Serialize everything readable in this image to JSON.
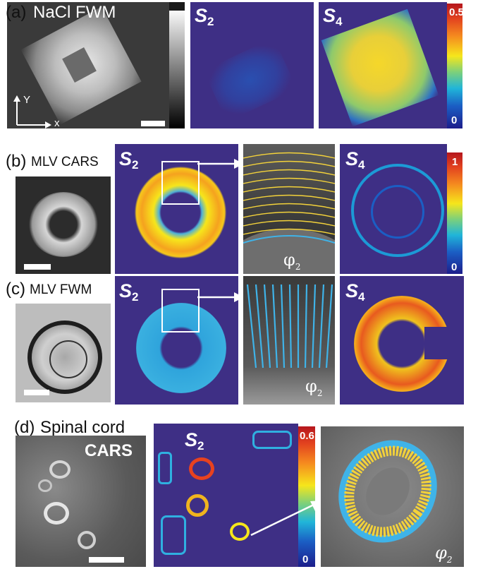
{
  "panel_labels": {
    "a": "(a)",
    "a_title": "NaCl FWM",
    "b": "(b)",
    "b_title": "MLV CARS",
    "c": "(c)",
    "c_title": "MLV FWM",
    "d": "(d)",
    "d_title": "Spinal cord"
  },
  "symbols": {
    "S": "S",
    "sub2": "2",
    "sub4": "4",
    "phi": "φ",
    "phi_sub": "2",
    "cars": "CARS"
  },
  "axes": {
    "x": "x",
    "y": "Y"
  },
  "colorbars": {
    "a_max": "0.5",
    "a_min": "0",
    "b_max": "1",
    "b_min": "0",
    "d_max": "0.6",
    "d_min": "0"
  },
  "colors": {
    "map_background": "#3e2f85",
    "hot": "#e2421f",
    "warm": "#f6e61b",
    "cool": "#20b5d9",
    "cold": "#1b5ec4",
    "stick_yellow": "#f3d23a",
    "stick_cyan": "#3fb3e8"
  }
}
